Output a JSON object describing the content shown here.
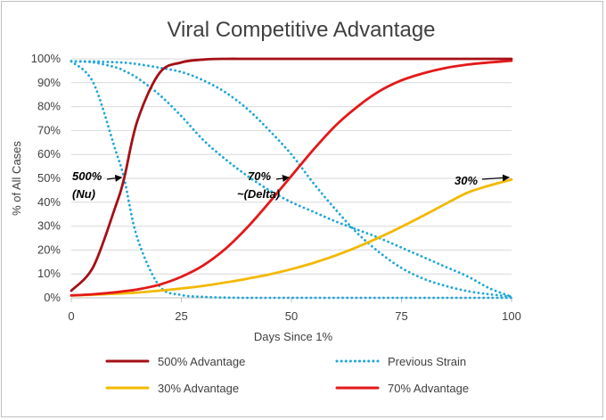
{
  "chart_data": {
    "type": "line",
    "title": "Viral Competitive Advantage",
    "xlabel": "Days Since 1%",
    "ylabel": "% of All Cases",
    "xlim": [
      0,
      100
    ],
    "ylim": [
      0,
      100
    ],
    "x_ticks": [
      0,
      25,
      50,
      75,
      100
    ],
    "x_tick_labels": [
      "0",
      "25",
      "50",
      "75",
      "100"
    ],
    "y_ticks": [
      0,
      10,
      20,
      30,
      40,
      50,
      60,
      70,
      80,
      90,
      100
    ],
    "y_tick_labels": [
      "0%",
      "10%",
      "20%",
      "30%",
      "40%",
      "50%",
      "60%",
      "70%",
      "80%",
      "90%",
      "100%"
    ],
    "grid": "horizontal",
    "legend_position": "bottom",
    "x": [
      0,
      5,
      10,
      12,
      15,
      20,
      25,
      30,
      35,
      40,
      45,
      50,
      55,
      60,
      65,
      70,
      75,
      80,
      85,
      90,
      95,
      100
    ],
    "series": [
      {
        "name": "500% Advantage",
        "color": "#a50f15",
        "style": "solid",
        "values": [
          3,
          13,
          38,
          50,
          74,
          94,
          98.5,
          99.7,
          100,
          100,
          100,
          100,
          100,
          100,
          100,
          100,
          100,
          100,
          100,
          100,
          100,
          100
        ]
      },
      {
        "name": "Previous Strain",
        "color": "#1fa7d8",
        "style": "dotted",
        "values": [
          99,
          98.9,
          98.6,
          98.4,
          97.8,
          96.3,
          94.5,
          91,
          86,
          79,
          70,
          60,
          48,
          37,
          27,
          19,
          12.5,
          8,
          5,
          2.8,
          1.5,
          0.5
        ]
      },
      {
        "name": "Previous Strain",
        "color": "#1fa7d8",
        "style": "dotted",
        "values": [
          99,
          98.5,
          96.5,
          95,
          92,
          85,
          76,
          66,
          58,
          51,
          45,
          40,
          36,
          32,
          28.5,
          25,
          21,
          17,
          13,
          9,
          4,
          0.5
        ]
      },
      {
        "name": "Previous Strain",
        "color": "#1fa7d8",
        "style": "dotted",
        "values": [
          99,
          90,
          62,
          50,
          25,
          5,
          1.2,
          0.4,
          0.1,
          0,
          0,
          0,
          0,
          0,
          0,
          0,
          0,
          0,
          0,
          0,
          0,
          0
        ]
      },
      {
        "name": "30% Advantage",
        "color": "#f2b900",
        "style": "solid",
        "values": [
          1,
          1.3,
          1.7,
          1.9,
          2.2,
          3,
          3.9,
          5,
          6.4,
          8,
          9.8,
          12,
          14.6,
          17.7,
          21.3,
          25.3,
          29.7,
          34.4,
          39.3,
          44,
          47,
          49.5
        ]
      },
      {
        "name": "70% Advantage",
        "color": "#e3191a",
        "style": "solid",
        "values": [
          1,
          1.5,
          2.3,
          2.8,
          3.5,
          5.5,
          8.8,
          13.6,
          20.5,
          29.5,
          40,
          51,
          62,
          72,
          80,
          86.5,
          91,
          94,
          96.2,
          97.6,
          98.5,
          99.2
        ]
      }
    ],
    "annotations": [
      {
        "line1": "500%",
        "line2": "(Nu)",
        "points_to": {
          "x": 12,
          "y": 50
        }
      },
      {
        "line1": "70%",
        "line2": "~(Delta)",
        "points_to": {
          "x": 50,
          "y": 50
        }
      },
      {
        "line1": "30%",
        "line2": "",
        "points_to": {
          "x": 100,
          "y": 50
        }
      }
    ],
    "legend": [
      {
        "label": "500% Advantage",
        "color": "#a50f15",
        "style": "solid"
      },
      {
        "label": "Previous Strain",
        "color": "#1fa7d8",
        "style": "dotted"
      },
      {
        "label": "30% Advantage",
        "color": "#f2b900",
        "style": "solid"
      },
      {
        "label": "70% Advantage",
        "color": "#e3191a",
        "style": "solid"
      }
    ]
  }
}
